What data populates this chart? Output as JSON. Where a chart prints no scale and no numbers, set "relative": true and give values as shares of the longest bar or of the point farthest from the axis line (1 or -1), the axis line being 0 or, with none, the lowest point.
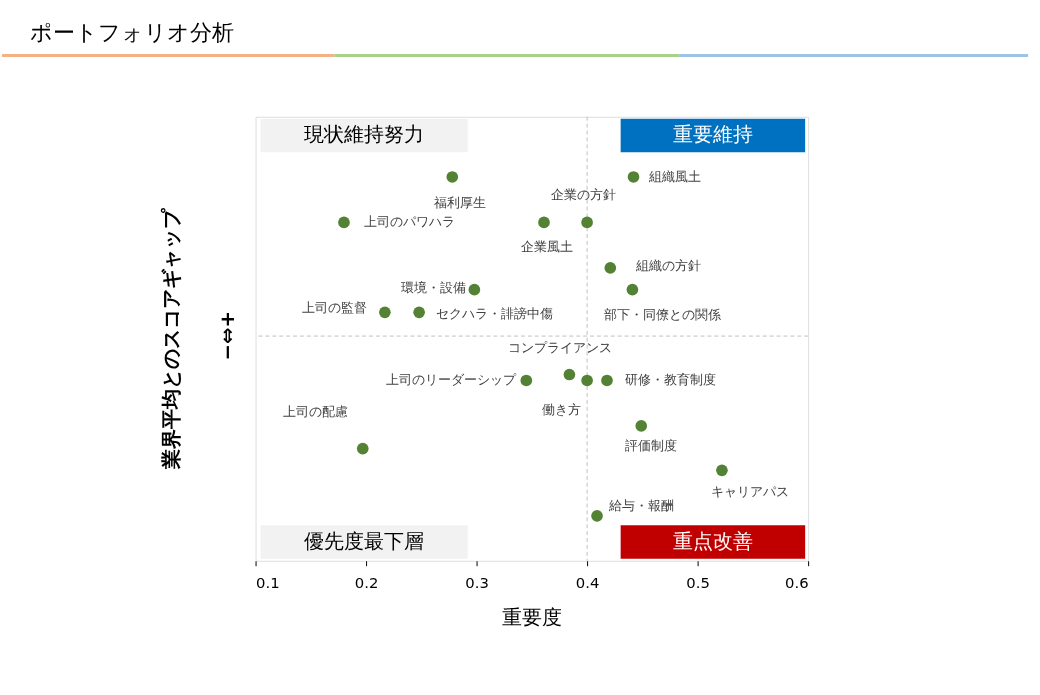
{
  "chart_data": {
    "type": "scatter",
    "title": "ポートフォリオ分析",
    "xlabel": "重要度",
    "ylabel": "業界平均とのスコアギャップ",
    "relative": true,
    "xlim": [
      0.1,
      0.6
    ],
    "xticks": [
      0.1,
      0.2,
      0.3,
      0.4,
      0.5,
      0.6
    ],
    "grid": false,
    "marker": "circle",
    "series": [
      {
        "color": "#548235",
        "x": [
          0.278,
          0.18,
          0.361,
          0.4,
          0.442,
          0.421,
          0.298,
          0.441,
          0.217,
          0.248,
          0.345,
          0.384,
          0.4,
          0.418,
          0.197,
          0.449,
          0.522,
          0.409
        ],
        "values": [
          0.885,
          0.632,
          0.632,
          0.632,
          0.885,
          0.379,
          0.258,
          0.258,
          0.132,
          0.132,
          -0.247,
          -0.214,
          -0.247,
          -0.247,
          -0.626,
          -0.5,
          -0.747,
          -1.0
        ]
      }
    ],
    "ref_lines": [
      {
        "axis": "x",
        "value": 0.4,
        "line_style": "dashed",
        "color": "#bfbfbf"
      },
      {
        "axis": "y",
        "value": 0,
        "line_style": "dashed",
        "color": "#bfbfbf"
      }
    ],
    "annotations": [
      "現状維持努力",
      "重要維持",
      "優先度最下層",
      "重点改善",
      "−⇔+",
      {
        "text": "福利厚生",
        "x": 0.278,
        "y": 0.885
      },
      {
        "text": "上司のパワハラ",
        "x": 0.18,
        "y": 0.632
      },
      {
        "text": "企業風土",
        "x": 0.361,
        "y": 0.632
      },
      {
        "text": "企業の方針",
        "x": 0.4,
        "y": 0.632
      },
      {
        "text": "組織風土",
        "x": 0.442,
        "y": 0.885
      },
      {
        "text": "組織の方針",
        "x": 0.421,
        "y": 0.379
      },
      {
        "text": "環境・設備",
        "x": 0.298,
        "y": 0.258
      },
      {
        "text": "部下・同僚との関係",
        "x": 0.441,
        "y": 0.258
      },
      {
        "text": "上司の監督",
        "x": 0.217,
        "y": 0.132
      },
      {
        "text": "セクハラ・誹謗中傷",
        "x": 0.248,
        "y": 0.132
      },
      {
        "text": "上司のリーダーシップ",
        "x": 0.345,
        "y": -0.247
      },
      {
        "text": "コンプライアンス",
        "x": 0.384,
        "y": -0.214
      },
      {
        "text": "働き方",
        "x": 0.4,
        "y": -0.247
      },
      {
        "text": "研修・教育制度",
        "x": 0.418,
        "y": -0.247
      },
      {
        "text": "上司の配慮",
        "x": 0.197,
        "y": -0.626
      },
      {
        "text": "評価制度",
        "x": 0.449,
        "y": -0.5
      },
      {
        "text": "キャリアパス",
        "x": 0.522,
        "y": -0.747
      },
      {
        "text": "給与・報酬",
        "x": 0.409,
        "y": -1.0
      }
    ]
  }
}
